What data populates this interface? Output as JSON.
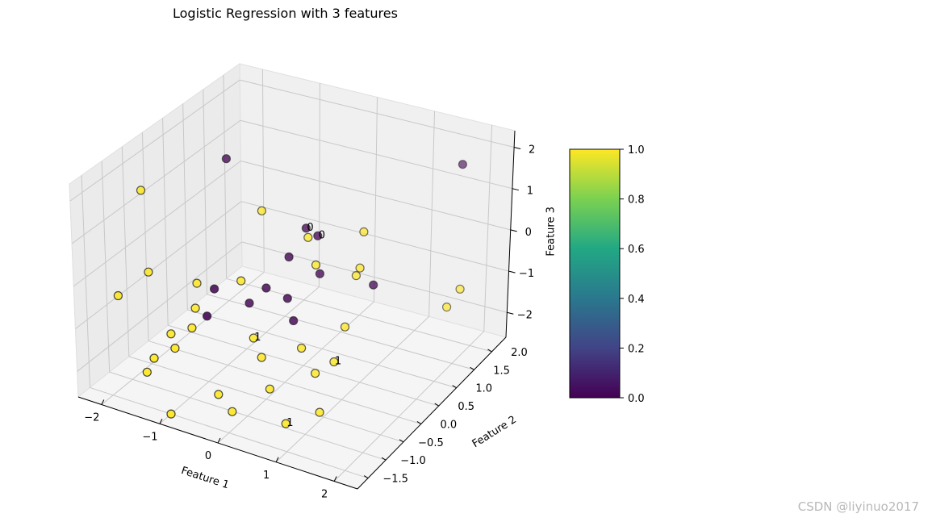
{
  "chart_data": {
    "type": "scatter",
    "title": "Logistic Regression with 3 features",
    "xlabel": "Feature 1",
    "ylabel": "Feature 2",
    "zlabel": "Feature 3",
    "xlim": [
      -2.4,
      2.4
    ],
    "ylim": [
      -1.8,
      2.4
    ],
    "zlim": [
      -2.6,
      2.4
    ],
    "xticks": [
      -2,
      -1,
      0,
      1,
      2
    ],
    "xtick_labels": [
      "−2",
      "−1",
      "0",
      "1",
      "2"
    ],
    "yticks": [
      -1.5,
      -1.0,
      -0.5,
      0.0,
      0.5,
      1.0,
      1.5,
      2.0
    ],
    "ytick_labels": [
      "−1.5",
      "−1.0",
      "−0.5",
      "0.0",
      "0.5",
      "1.0",
      "1.5",
      "2.0"
    ],
    "zticks": [
      -2,
      -1,
      0,
      1,
      2
    ],
    "ztick_labels": [
      "−2",
      "−1",
      "0",
      "1",
      "2"
    ],
    "grid": true,
    "colormap": "viridis",
    "colorbar": {
      "ticks": [
        0.0,
        0.2,
        0.4,
        0.6,
        0.8,
        1.0
      ],
      "tick_labels": [
        "0.0",
        "0.2",
        "0.4",
        "0.6",
        "0.8",
        "1.0"
      ]
    },
    "points": [
      {
        "x": -1.1,
        "y": 0.2,
        "z": 2.2,
        "label": 0
      },
      {
        "x": 0.2,
        "y": 0.3,
        "z": 1.0,
        "label": 0
      },
      {
        "x": 0.4,
        "y": 0.3,
        "z": 0.9,
        "label": 0
      },
      {
        "x": 0.1,
        "y": 0.0,
        "z": 0.5,
        "label": 0
      },
      {
        "x": 0.5,
        "y": 0.2,
        "z": 0.1,
        "label": 0
      },
      {
        "x": 1.3,
        "y": 0.4,
        "z": 0.0,
        "label": 0
      },
      {
        "x": -0.1,
        "y": -0.3,
        "z": -0.1,
        "label": 0
      },
      {
        "x": 0.2,
        "y": -0.2,
        "z": -0.3,
        "label": 0
      },
      {
        "x": -0.8,
        "y": -0.6,
        "z": -0.2,
        "label": 0
      },
      {
        "x": -0.4,
        "y": -0.3,
        "z": -0.6,
        "label": 0
      },
      {
        "x": 0.3,
        "y": -0.2,
        "z": -0.8,
        "label": 0
      },
      {
        "x": -0.8,
        "y": -0.8,
        "z": -0.7,
        "label": 0
      },
      {
        "x": 2.1,
        "y": 1.5,
        "z": 2.3,
        "label": 0
      },
      {
        "x": -2.1,
        "y": -0.5,
        "z": 1.5,
        "label": 1
      },
      {
        "x": -0.5,
        "y": 0.2,
        "z": 1.2,
        "label": 1
      },
      {
        "x": 0.3,
        "y": 0.2,
        "z": 0.9,
        "label": 1
      },
      {
        "x": 1.0,
        "y": 0.6,
        "z": 1.0,
        "label": 1
      },
      {
        "x": 0.5,
        "y": 0.1,
        "z": 0.4,
        "label": 1
      },
      {
        "x": 1.0,
        "y": 0.5,
        "z": 0.2,
        "label": 1
      },
      {
        "x": 1.0,
        "y": 0.4,
        "z": 0.1,
        "label": 1
      },
      {
        "x": -1.8,
        "y": -0.8,
        "z": -0.1,
        "label": 1
      },
      {
        "x": -1.1,
        "y": -0.6,
        "z": -0.2,
        "label": 1
      },
      {
        "x": -0.4,
        "y": -0.5,
        "z": 0.1,
        "label": 1
      },
      {
        "x": -2.2,
        "y": -1.0,
        "z": -0.7,
        "label": 1
      },
      {
        "x": -1.0,
        "y": -0.8,
        "z": -0.6,
        "label": 1
      },
      {
        "x": 1.0,
        "y": 0.1,
        "z": -0.9,
        "label": 1
      },
      {
        "x": 2.3,
        "y": 1.2,
        "z": -0.4,
        "label": 1
      },
      {
        "x": 2.2,
        "y": 1.0,
        "z": -0.7,
        "label": 1
      },
      {
        "x": -1.0,
        "y": -0.9,
        "z": -1.0,
        "label": 1
      },
      {
        "x": -0.2,
        "y": -0.5,
        "z": -1.2,
        "label": 1
      },
      {
        "x": 0.5,
        "y": -0.3,
        "z": -1.3,
        "label": 1
      },
      {
        "x": -1.3,
        "y": -1.0,
        "z": -1.2,
        "label": 1
      },
      {
        "x": -1.1,
        "y": -1.2,
        "z": -1.3,
        "label": 1
      },
      {
        "x": 0.0,
        "y": -0.6,
        "z": -1.5,
        "label": 1
      },
      {
        "x": 1.0,
        "y": -0.2,
        "z": -1.5,
        "label": 1
      },
      {
        "x": 0.8,
        "y": -0.4,
        "z": -1.7,
        "label": 1
      },
      {
        "x": -1.4,
        "y": -1.3,
        "z": -1.6,
        "label": 1
      },
      {
        "x": -1.6,
        "y": -1.2,
        "z": -2.1,
        "label": 1
      },
      {
        "x": -0.5,
        "y": -1.0,
        "z": -2.3,
        "label": 1
      },
      {
        "x": 0.2,
        "y": -0.7,
        "z": -2.1,
        "label": 1
      },
      {
        "x": 1.0,
        "y": -0.6,
        "z": -2.4,
        "label": 1
      },
      {
        "x": -0.2,
        "y": -1.1,
        "z": -2.5,
        "label": 1
      },
      {
        "x": -1.0,
        "y": -1.5,
        "z": -2.6,
        "label": 1
      },
      {
        "x": 0.6,
        "y": -0.9,
        "z": -2.6,
        "label": 1
      }
    ],
    "annotations": [
      {
        "text": "0",
        "x": 0.2,
        "y": 0.3,
        "z": 1.0
      },
      {
        "text": "0",
        "x": 0.4,
        "y": 0.3,
        "z": 0.9
      },
      {
        "text": "1",
        "x": 1.0,
        "y": -0.2,
        "z": -1.5
      },
      {
        "text": "1",
        "x": -0.2,
        "y": -0.5,
        "z": -1.2
      },
      {
        "text": "1",
        "x": 0.6,
        "y": -0.9,
        "z": -2.6
      }
    ]
  },
  "watermark": "CSDN @liyinuo2017"
}
